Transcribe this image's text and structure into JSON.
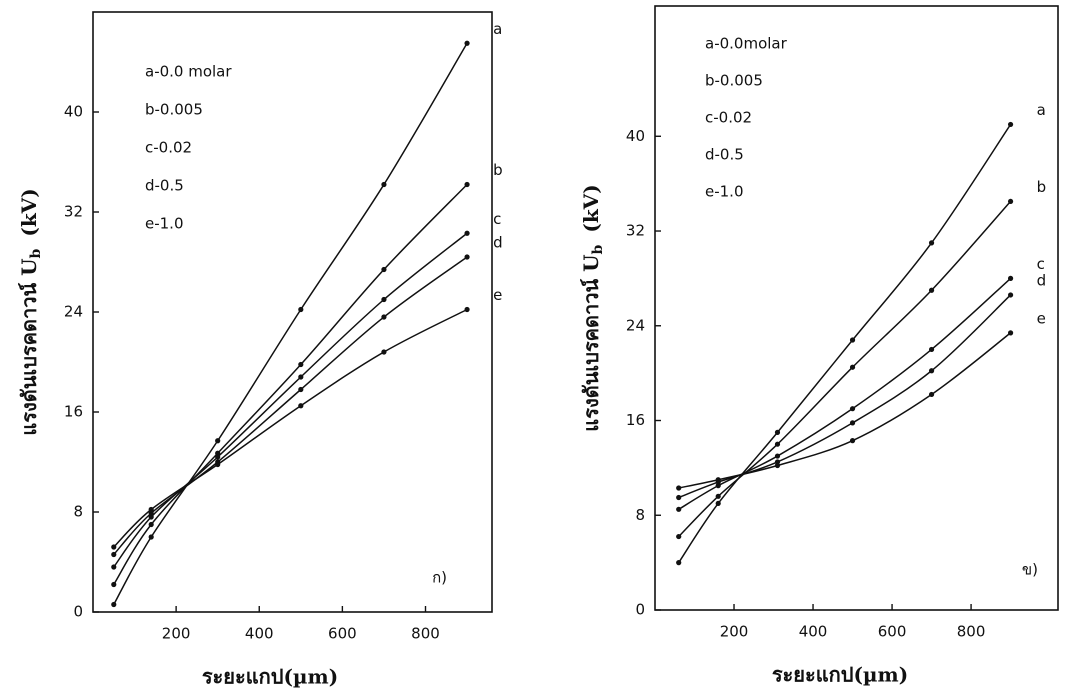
{
  "chart_data": [
    {
      "type": "line",
      "xlabel": "ระยะแกป(µm)",
      "ylabel": "แรงดันเบรคดาวน์ U",
      "ylabel_sub": "b",
      "ylabel_unit": "(kV)",
      "panel_label": "ก)",
      "legend_text": [
        "a-0.0 molar",
        "b-0.005",
        "c-0.02",
        "d-0.5",
        "e-1.0"
      ],
      "x": [
        50,
        140,
        300,
        500,
        700,
        900
      ],
      "xlim": [
        0,
        960
      ],
      "xticks": [
        200,
        400,
        600,
        800
      ],
      "ylim": [
        0,
        48
      ],
      "yticks": [
        0,
        8,
        16,
        24,
        32,
        40
      ],
      "color": "#111111",
      "series": [
        {
          "name": "a",
          "values": [
            0.6,
            6.0,
            13.7,
            24.2,
            34.2,
            45.5
          ]
        },
        {
          "name": "b",
          "values": [
            2.2,
            7.0,
            12.7,
            19.8,
            27.4,
            34.2
          ]
        },
        {
          "name": "c",
          "values": [
            3.6,
            7.6,
            12.4,
            18.8,
            25.0,
            30.3
          ]
        },
        {
          "name": "d",
          "values": [
            4.6,
            7.9,
            12.0,
            17.8,
            23.6,
            28.4
          ]
        },
        {
          "name": "e",
          "values": [
            5.2,
            8.2,
            11.8,
            16.5,
            20.8,
            24.2
          ]
        }
      ]
    },
    {
      "type": "line",
      "xlabel": "ระยะแกป(µm)",
      "ylabel": "แรงดันเบรคดาวน์ U",
      "ylabel_sub": "b",
      "ylabel_unit": "(kV)",
      "panel_label": "ข)",
      "legend_text": [
        "a-0.0molar",
        "b-0.005",
        "c-0.02",
        "d-0.5",
        "e-1.0"
      ],
      "x": [
        60,
        160,
        310,
        500,
        700,
        900
      ],
      "xlim": [
        0,
        1020
      ],
      "xticks": [
        200,
        400,
        600,
        800
      ],
      "ylim": [
        0,
        51
      ],
      "yticks": [
        0,
        8,
        16,
        24,
        32,
        40
      ],
      "color": "#111111",
      "series": [
        {
          "name": "a",
          "values": [
            4.0,
            9.0,
            15.0,
            22.8,
            31.0,
            41.0
          ]
        },
        {
          "name": "b",
          "values": [
            6.2,
            9.6,
            14.0,
            20.5,
            27.0,
            34.5
          ]
        },
        {
          "name": "c",
          "values": [
            8.5,
            10.5,
            13.0,
            17.0,
            22.0,
            28.0
          ]
        },
        {
          "name": "d",
          "values": [
            9.5,
            10.8,
            12.5,
            15.8,
            20.2,
            26.6
          ]
        },
        {
          "name": "e",
          "values": [
            10.3,
            11.0,
            12.2,
            14.3,
            18.2,
            23.4
          ]
        }
      ]
    }
  ]
}
